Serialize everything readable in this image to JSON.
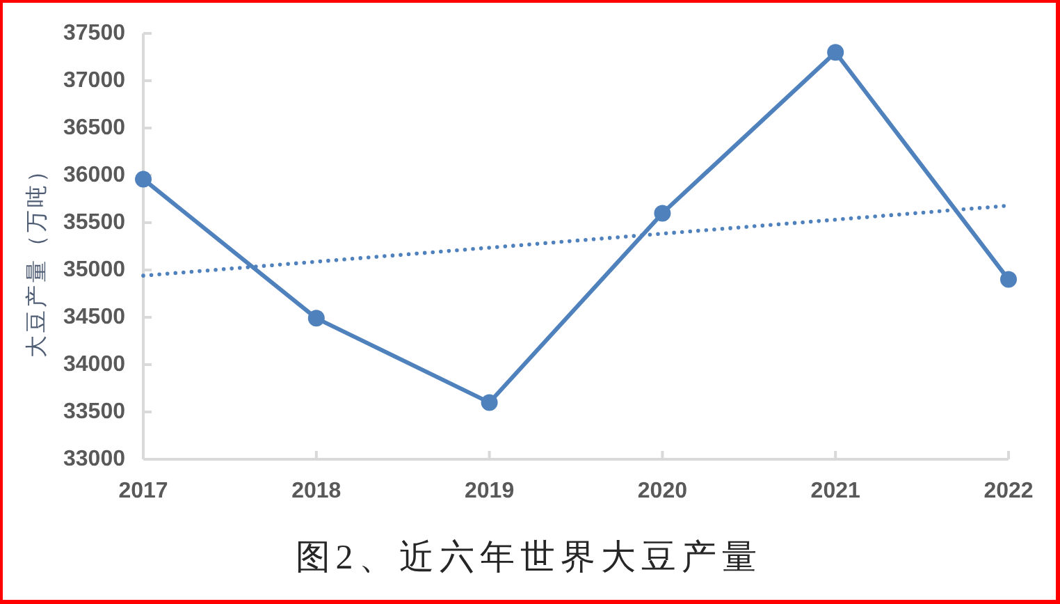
{
  "chart_data": {
    "type": "line",
    "title": "图2、近六年世界大豆产量",
    "ylabel": "大豆产量（万吨）",
    "x": [
      2017,
      2018,
      2019,
      2020,
      2021,
      2022
    ],
    "xlim": [
      2017,
      2022
    ],
    "xticks": [
      2017,
      2018,
      2019,
      2020,
      2021,
      2022
    ],
    "ylim": [
      33000,
      37500
    ],
    "yticks": [
      33000,
      33500,
      34000,
      34500,
      35000,
      35500,
      36000,
      36500,
      37000,
      37500
    ],
    "marker": "circle",
    "line_style": "solid",
    "series": [
      {
        "color": "#4f81bd",
        "values": [
          35960,
          34490,
          33600,
          35600,
          37300,
          34900
        ]
      },
      {
        "type": "line",
        "x": [
          2017,
          2022
        ],
        "values": [
          34940,
          35680
        ],
        "color": "#4f81bd",
        "line_style": "dotted",
        "marker": "none"
      }
    ]
  }
}
